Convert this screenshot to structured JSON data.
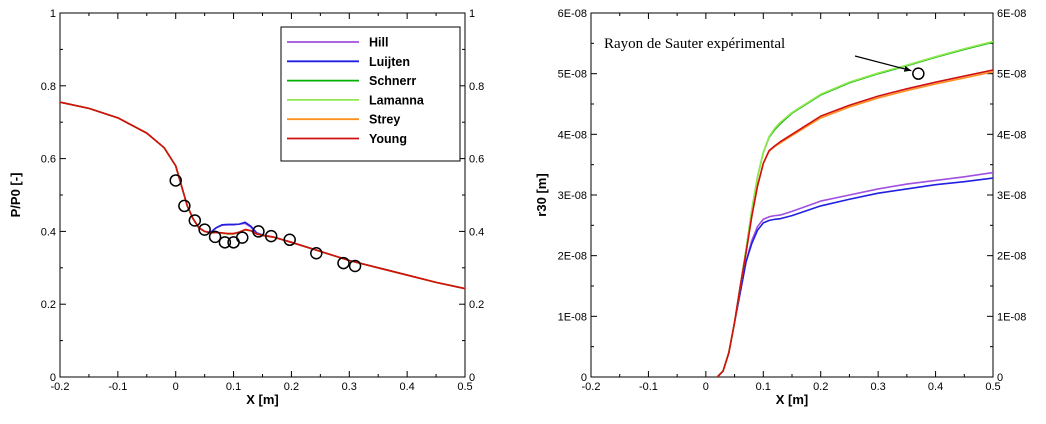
{
  "chart_data": [
    {
      "type": "line",
      "xlabel": "X [m]",
      "ylabel": "P/P0 [-]",
      "xlim": [
        -0.2,
        0.5
      ],
      "ylim": [
        0,
        1
      ],
      "xticks": [
        "-0.2",
        "-0.1",
        "0",
        "0.1",
        "0.2",
        "0.3",
        "0.4",
        "0.5"
      ],
      "yticks": [
        "0",
        "0.2",
        "0.4",
        "0.6",
        "0.8",
        "1"
      ],
      "right_yticks": [
        "0",
        "0.2",
        "0.4",
        "0.6",
        "0.8",
        "1"
      ],
      "grid": false,
      "legend_position": "top-right",
      "series": [
        {
          "name": "Hill",
          "color": "#a050e0",
          "x": [
            -0.2,
            -0.15,
            -0.1,
            -0.05,
            -0.02,
            0,
            0.01,
            0.02,
            0.03,
            0.04,
            0.05,
            0.06,
            0.07,
            0.08,
            0.09,
            0.1,
            0.11,
            0.12,
            0.13,
            0.14,
            0.15,
            0.17,
            0.2,
            0.25,
            0.3,
            0.35,
            0.4,
            0.45,
            0.5
          ],
          "y": [
            0.755,
            0.738,
            0.712,
            0.67,
            0.63,
            0.58,
            0.525,
            0.47,
            0.435,
            0.41,
            0.4,
            0.397,
            0.41,
            0.417,
            0.418,
            0.418,
            0.42,
            0.422,
            0.412,
            0.395,
            0.39,
            0.384,
            0.37,
            0.345,
            0.32,
            0.3,
            0.28,
            0.26,
            0.243
          ]
        },
        {
          "name": "Luijten",
          "color": "#2020e0",
          "x": [
            -0.2,
            -0.15,
            -0.1,
            -0.05,
            -0.02,
            0,
            0.01,
            0.02,
            0.03,
            0.04,
            0.05,
            0.06,
            0.07,
            0.08,
            0.09,
            0.1,
            0.11,
            0.12,
            0.13,
            0.14,
            0.15,
            0.17,
            0.2,
            0.25,
            0.3,
            0.35,
            0.4,
            0.45,
            0.5
          ],
          "y": [
            0.755,
            0.738,
            0.712,
            0.67,
            0.63,
            0.58,
            0.525,
            0.47,
            0.435,
            0.41,
            0.4,
            0.397,
            0.41,
            0.418,
            0.419,
            0.419,
            0.42,
            0.425,
            0.414,
            0.396,
            0.39,
            0.384,
            0.37,
            0.345,
            0.32,
            0.3,
            0.28,
            0.26,
            0.243
          ]
        },
        {
          "name": "Schnerr",
          "color": "#00b000",
          "x": [
            -0.2,
            -0.15,
            -0.1,
            -0.05,
            -0.02,
            0,
            0.01,
            0.02,
            0.03,
            0.04,
            0.05,
            0.06,
            0.07,
            0.08,
            0.09,
            0.1,
            0.11,
            0.12,
            0.13,
            0.14,
            0.15,
            0.17,
            0.2,
            0.25,
            0.3,
            0.35,
            0.4,
            0.45,
            0.5
          ],
          "y": [
            0.755,
            0.738,
            0.712,
            0.67,
            0.63,
            0.58,
            0.525,
            0.47,
            0.435,
            0.41,
            0.4,
            0.396,
            0.397,
            0.395,
            0.393,
            0.393,
            0.397,
            0.404,
            0.402,
            0.393,
            0.389,
            0.384,
            0.37,
            0.345,
            0.32,
            0.3,
            0.28,
            0.26,
            0.243
          ]
        },
        {
          "name": "Lamanna",
          "color": "#90e850",
          "x": [
            -0.2,
            -0.15,
            -0.1,
            -0.05,
            -0.02,
            0,
            0.01,
            0.02,
            0.03,
            0.04,
            0.05,
            0.06,
            0.07,
            0.08,
            0.09,
            0.1,
            0.11,
            0.12,
            0.13,
            0.14,
            0.15,
            0.17,
            0.2,
            0.25,
            0.3,
            0.35,
            0.4,
            0.45,
            0.5
          ],
          "y": [
            0.755,
            0.738,
            0.712,
            0.67,
            0.63,
            0.58,
            0.525,
            0.47,
            0.435,
            0.41,
            0.4,
            0.396,
            0.397,
            0.395,
            0.393,
            0.393,
            0.397,
            0.404,
            0.402,
            0.393,
            0.389,
            0.384,
            0.37,
            0.345,
            0.32,
            0.3,
            0.28,
            0.26,
            0.243
          ]
        },
        {
          "name": "Strey",
          "color": "#ff9020",
          "x": [
            -0.2,
            -0.15,
            -0.1,
            -0.05,
            -0.02,
            0,
            0.01,
            0.02,
            0.03,
            0.04,
            0.05,
            0.06,
            0.07,
            0.08,
            0.09,
            0.1,
            0.11,
            0.12,
            0.13,
            0.14,
            0.15,
            0.17,
            0.2,
            0.25,
            0.3,
            0.35,
            0.4,
            0.45,
            0.5
          ],
          "y": [
            0.755,
            0.738,
            0.712,
            0.67,
            0.63,
            0.58,
            0.525,
            0.47,
            0.435,
            0.41,
            0.4,
            0.396,
            0.397,
            0.396,
            0.394,
            0.394,
            0.398,
            0.405,
            0.402,
            0.393,
            0.389,
            0.384,
            0.37,
            0.345,
            0.32,
            0.3,
            0.28,
            0.26,
            0.243
          ]
        },
        {
          "name": "Young",
          "color": "#d01010",
          "x": [
            -0.2,
            -0.15,
            -0.1,
            -0.05,
            -0.02,
            0,
            0.01,
            0.02,
            0.03,
            0.04,
            0.05,
            0.06,
            0.07,
            0.08,
            0.09,
            0.1,
            0.11,
            0.12,
            0.13,
            0.14,
            0.15,
            0.17,
            0.2,
            0.25,
            0.3,
            0.35,
            0.4,
            0.45,
            0.5
          ],
          "y": [
            0.755,
            0.738,
            0.712,
            0.67,
            0.63,
            0.58,
            0.525,
            0.47,
            0.435,
            0.41,
            0.4,
            0.396,
            0.397,
            0.396,
            0.394,
            0.394,
            0.398,
            0.405,
            0.402,
            0.393,
            0.389,
            0.384,
            0.37,
            0.345,
            0.32,
            0.3,
            0.28,
            0.26,
            0.243
          ]
        }
      ],
      "markers": {
        "shape": "open-circle",
        "color": "#000000",
        "points": [
          [
            0,
            0.54
          ],
          [
            0.015,
            0.47
          ],
          [
            0.033,
            0.43
          ],
          [
            0.05,
            0.405
          ],
          [
            0.068,
            0.385
          ],
          [
            0.085,
            0.37
          ],
          [
            0.1,
            0.37
          ],
          [
            0.115,
            0.383
          ],
          [
            0.143,
            0.4
          ],
          [
            0.165,
            0.387
          ],
          [
            0.197,
            0.377
          ],
          [
            0.243,
            0.34
          ],
          [
            0.29,
            0.313
          ],
          [
            0.31,
            0.305
          ]
        ]
      }
    },
    {
      "type": "line",
      "xlabel": "X [m]",
      "ylabel": "r30 [m]",
      "xlim": [
        -0.2,
        0.5
      ],
      "ylim": [
        0,
        6e-08
      ],
      "xticks": [
        "-0.2",
        "-0.1",
        "0",
        "0.1",
        "0.2",
        "0.3",
        "0.4",
        "0.5"
      ],
      "yticks": [
        "0",
        "1E-08",
        "2E-08",
        "3E-08",
        "4E-08",
        "5E-08",
        "6E-08"
      ],
      "right_yticks": [
        "0",
        "1E-08",
        "2E-08",
        "3E-08",
        "4E-08",
        "5E-08",
        "6E-08"
      ],
      "grid": false,
      "annotation": {
        "text": "Rayon de Sauter expérimental",
        "point": [
          0.37,
          5e-08
        ]
      },
      "series": [
        {
          "name": "Hill",
          "color": "#a050e0",
          "x": [
            0.02,
            0.03,
            0.04,
            0.05,
            0.06,
            0.07,
            0.08,
            0.09,
            0.1,
            0.11,
            0.12,
            0.13,
            0.15,
            0.2,
            0.25,
            0.3,
            0.35,
            0.4,
            0.45,
            0.5
          ],
          "y": [
            0,
            1e-09,
            4e-09,
            9e-09,
            1.4e-08,
            1.9e-08,
            2.25e-08,
            2.48e-08,
            2.6e-08,
            2.64e-08,
            2.66e-08,
            2.67e-08,
            2.73e-08,
            2.9e-08,
            3e-08,
            3.1e-08,
            3.18e-08,
            3.24e-08,
            3.3e-08,
            3.37e-08
          ]
        },
        {
          "name": "Luijten",
          "color": "#2020e0",
          "x": [
            0.02,
            0.03,
            0.04,
            0.05,
            0.06,
            0.07,
            0.08,
            0.09,
            0.1,
            0.11,
            0.12,
            0.13,
            0.15,
            0.2,
            0.25,
            0.3,
            0.35,
            0.4,
            0.45,
            0.5
          ],
          "y": [
            0,
            1e-09,
            4e-09,
            9e-09,
            1.4e-08,
            1.9e-08,
            2.2e-08,
            2.42e-08,
            2.54e-08,
            2.58e-08,
            2.6e-08,
            2.61e-08,
            2.66e-08,
            2.82e-08,
            2.93e-08,
            3.03e-08,
            3.1e-08,
            3.17e-08,
            3.22e-08,
            3.28e-08
          ]
        },
        {
          "name": "Schnerr",
          "color": "#00b000",
          "x": [
            0.02,
            0.03,
            0.04,
            0.05,
            0.06,
            0.07,
            0.08,
            0.09,
            0.1,
            0.11,
            0.12,
            0.13,
            0.15,
            0.2,
            0.25,
            0.3,
            0.35,
            0.4,
            0.45,
            0.5
          ],
          "y": [
            0,
            1e-09,
            4e-09,
            9e-09,
            1.5e-08,
            2.1e-08,
            2.75e-08,
            3.3e-08,
            3.7e-08,
            3.95e-08,
            4.08e-08,
            4.18e-08,
            4.35e-08,
            4.65e-08,
            4.85e-08,
            5e-08,
            5.13e-08,
            5.27e-08,
            5.4e-08,
            5.52e-08
          ]
        },
        {
          "name": "Lamanna",
          "color": "#90e850",
          "x": [
            0.02,
            0.03,
            0.04,
            0.05,
            0.06,
            0.07,
            0.08,
            0.09,
            0.1,
            0.11,
            0.12,
            0.13,
            0.15,
            0.2,
            0.25,
            0.3,
            0.35,
            0.4,
            0.45,
            0.5
          ],
          "y": [
            0,
            1e-09,
            4e-09,
            9e-09,
            1.5e-08,
            2.1e-08,
            2.75e-08,
            3.3e-08,
            3.7e-08,
            3.96e-08,
            4.1e-08,
            4.2e-08,
            4.36e-08,
            4.66e-08,
            4.86e-08,
            5.01e-08,
            5.14e-08,
            5.28e-08,
            5.41e-08,
            5.53e-08
          ]
        },
        {
          "name": "Strey",
          "color": "#ff9020",
          "x": [
            0.02,
            0.03,
            0.04,
            0.05,
            0.06,
            0.07,
            0.08,
            0.09,
            0.1,
            0.11,
            0.12,
            0.13,
            0.15,
            0.2,
            0.25,
            0.3,
            0.35,
            0.4,
            0.45,
            0.5
          ],
          "y": [
            0,
            1e-09,
            4e-09,
            9e-09,
            1.5e-08,
            2.05e-08,
            2.65e-08,
            3.15e-08,
            3.52e-08,
            3.72e-08,
            3.8e-08,
            3.86e-08,
            3.98e-08,
            4.27e-08,
            4.45e-08,
            4.6e-08,
            4.72e-08,
            4.83e-08,
            4.93e-08,
            5.03e-08
          ]
        },
        {
          "name": "Young",
          "color": "#d01010",
          "x": [
            0.02,
            0.03,
            0.04,
            0.05,
            0.06,
            0.07,
            0.08,
            0.09,
            0.1,
            0.11,
            0.12,
            0.13,
            0.15,
            0.2,
            0.25,
            0.3,
            0.35,
            0.4,
            0.45,
            0.5
          ],
          "y": [
            0,
            1e-09,
            4e-09,
            9e-09,
            1.5e-08,
            2.05e-08,
            2.65e-08,
            3.15e-08,
            3.52e-08,
            3.73e-08,
            3.81e-08,
            3.88e-08,
            4e-08,
            4.3e-08,
            4.48e-08,
            4.63e-08,
            4.75e-08,
            4.86e-08,
            4.96e-08,
            5.06e-08
          ]
        }
      ],
      "markers": {
        "shape": "open-circle",
        "color": "#000000",
        "points": [
          [
            0.37,
            5e-08
          ]
        ]
      }
    }
  ]
}
